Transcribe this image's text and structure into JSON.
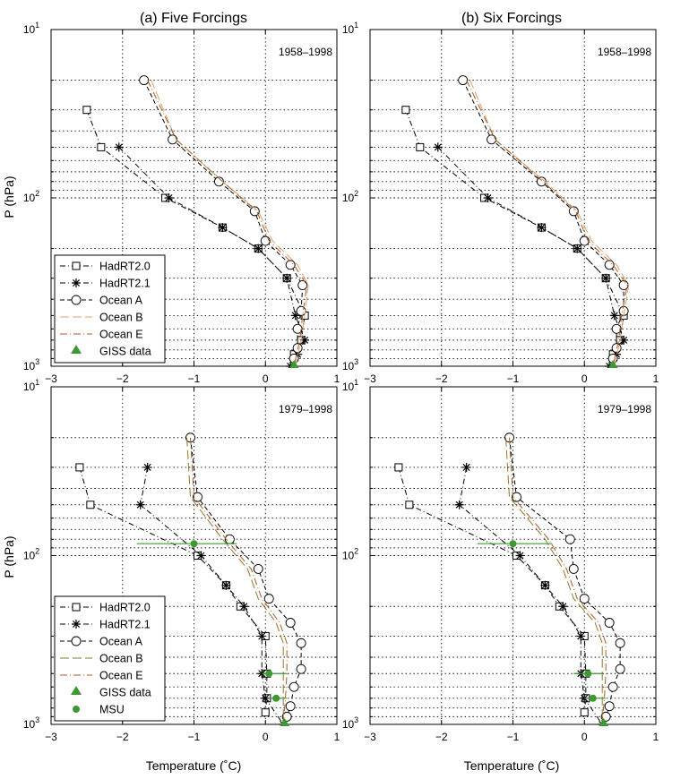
{
  "figure": {
    "ylabel": "P (hPa)",
    "xlabel": "Temperature (˚C)"
  },
  "chart_data": [
    {
      "type": "line",
      "title": "(a) Five Forcings",
      "annotation": "1958–1998",
      "xlim": [
        -3,
        1
      ],
      "ylim": [
        1000,
        10
      ],
      "yscale": "log",
      "xticks": [
        -3,
        -2,
        -1,
        0,
        1
      ],
      "yticks": [
        {
          "v": 10,
          "base": "10",
          "exp": "1"
        },
        {
          "v": 100,
          "base": "10",
          "exp": "2"
        },
        {
          "v": 1000,
          "base": "10",
          "exp": "3"
        }
      ],
      "grid": true,
      "legend": "bottom-left",
      "series": [
        {
          "name": "HadRT2.0",
          "marker": "square",
          "color": "#000000",
          "dash": "6 3 1 3",
          "x": [
            -2.5,
            -2.3,
            -1.4,
            -0.6,
            -0.1,
            0.3,
            0.55,
            0.5,
            0.4
          ],
          "y": [
            30,
            50,
            100,
            150,
            200,
            300,
            500,
            700,
            850
          ]
        },
        {
          "name": "HadRT2.1",
          "marker": "star",
          "color": "#000000",
          "dash": "6 3 1 3",
          "x": [
            -2.05,
            -1.35,
            -0.6,
            -0.1,
            0.3,
            0.42,
            0.55,
            0.45,
            0.35
          ],
          "y": [
            50,
            100,
            150,
            200,
            300,
            500,
            700,
            850,
            1000
          ]
        },
        {
          "name": "Ocean A",
          "marker": "circle",
          "color": "#000000",
          "dash": "5 3",
          "x": [
            -1.7,
            -1.3,
            -0.65,
            -0.15,
            0,
            0.35,
            0.52,
            0.5,
            0.45,
            0.45,
            0.4
          ],
          "y": [
            20,
            45,
            80,
            120,
            180,
            250,
            330,
            470,
            600,
            780,
            900
          ]
        },
        {
          "name": "Ocean B",
          "marker": "none",
          "color": "#d7a46c",
          "dash": "10 4",
          "x": [
            -1.6,
            -1.25,
            -0.6,
            -0.1,
            0.1,
            0.45,
            0.6,
            0.55,
            0.5,
            0.42
          ],
          "y": [
            20,
            45,
            80,
            120,
            180,
            250,
            330,
            500,
            700,
            1000
          ]
        },
        {
          "name": "Ocean E",
          "marker": "none",
          "color": "#a85a2a",
          "dash": "8 3 1 3",
          "x": [
            -1.65,
            -1.25,
            -0.6,
            -0.12,
            0.05,
            0.4,
            0.58,
            0.52,
            0.48,
            0.4
          ],
          "y": [
            20,
            45,
            80,
            120,
            180,
            250,
            330,
            500,
            700,
            1000
          ]
        },
        {
          "name": "GISS data",
          "marker": "triangle",
          "color": "#3d9a33",
          "dash": "",
          "x": [
            0.4
          ],
          "y": [
            1000
          ]
        }
      ]
    },
    {
      "type": "line",
      "title": "(b) Six Forcings",
      "annotation": "1958–1998",
      "xlim": [
        -3,
        1
      ],
      "ylim": [
        1000,
        10
      ],
      "yscale": "log",
      "xticks": [
        -3,
        -2,
        -1,
        0,
        1
      ],
      "yticks": [
        {
          "v": 10,
          "base": "10",
          "exp": "1"
        },
        {
          "v": 100,
          "base": "10",
          "exp": "2"
        },
        {
          "v": 1000,
          "base": "10",
          "exp": "3"
        }
      ],
      "grid": true,
      "series": [
        {
          "name": "HadRT2.0",
          "marker": "square",
          "color": "#000000",
          "dash": "6 3 1 3",
          "x": [
            -2.5,
            -2.3,
            -1.4,
            -0.6,
            -0.1,
            0.3,
            0.55,
            0.5,
            0.4
          ],
          "y": [
            30,
            50,
            100,
            150,
            200,
            300,
            500,
            700,
            850
          ]
        },
        {
          "name": "HadRT2.1",
          "marker": "star",
          "color": "#000000",
          "dash": "6 3 1 3",
          "x": [
            -2.05,
            -1.35,
            -0.6,
            -0.1,
            0.3,
            0.42,
            0.55,
            0.45,
            0.35
          ],
          "y": [
            50,
            100,
            150,
            200,
            300,
            500,
            700,
            850,
            1000
          ]
        },
        {
          "name": "Ocean A",
          "marker": "circle",
          "color": "#000000",
          "dash": "5 3",
          "x": [
            -1.7,
            -1.3,
            -0.6,
            -0.15,
            0,
            0.35,
            0.55,
            0.55,
            0.45,
            0.45,
            0.4
          ],
          "y": [
            20,
            45,
            80,
            120,
            180,
            250,
            330,
            470,
            600,
            780,
            900
          ]
        },
        {
          "name": "Ocean B",
          "marker": "none",
          "color": "#d7a46c",
          "dash": "10 4",
          "x": [
            -1.6,
            -1.25,
            -0.55,
            -0.1,
            0.1,
            0.45,
            0.62,
            0.55,
            0.5,
            0.42
          ],
          "y": [
            20,
            45,
            80,
            120,
            180,
            250,
            330,
            500,
            700,
            1000
          ]
        },
        {
          "name": "Ocean E",
          "marker": "none",
          "color": "#a85a2a",
          "dash": "8 3 1 3",
          "x": [
            -1.65,
            -1.25,
            -0.58,
            -0.12,
            0.05,
            0.4,
            0.6,
            0.52,
            0.48,
            0.4
          ],
          "y": [
            20,
            45,
            80,
            120,
            180,
            250,
            330,
            500,
            700,
            1000
          ]
        },
        {
          "name": "GISS data",
          "marker": "triangle",
          "color": "#3d9a33",
          "dash": "",
          "x": [
            0.4
          ],
          "y": [
            1000
          ]
        }
      ]
    },
    {
      "type": "line",
      "title": "",
      "annotation": "1979–1998",
      "xlim": [
        -3,
        1
      ],
      "ylim": [
        1000,
        10
      ],
      "yscale": "log",
      "xticks": [
        -3,
        -2,
        -1,
        0,
        1
      ],
      "yticks": [
        {
          "v": 10,
          "base": "10",
          "exp": "1"
        },
        {
          "v": 100,
          "base": "10",
          "exp": "2"
        },
        {
          "v": 1000,
          "base": "10",
          "exp": "3"
        }
      ],
      "grid": true,
      "legend": "bottom-left",
      "series": [
        {
          "name": "HadRT2.0",
          "marker": "square",
          "color": "#000000",
          "dash": "6 3 1 3",
          "x": [
            -2.6,
            -2.45,
            -0.95,
            -0.55,
            -0.35,
            0,
            0.02,
            0.02,
            0.0
          ],
          "y": [
            30,
            50,
            100,
            150,
            200,
            300,
            500,
            700,
            850
          ]
        },
        {
          "name": "HadRT2.1",
          "marker": "star",
          "color": "#000000",
          "dash": "6 3 1 3",
          "x": [
            -1.65,
            -1.75,
            -0.9,
            -0.55,
            -0.3,
            -0.05,
            -0.05,
            0.0,
            0.25
          ],
          "y": [
            30,
            50,
            100,
            150,
            200,
            300,
            500,
            700,
            1000
          ]
        },
        {
          "name": "Ocean A",
          "marker": "circle",
          "color": "#000000",
          "dash": "5 3",
          "x": [
            -1.05,
            -0.95,
            -0.5,
            -0.1,
            0.05,
            0.35,
            0.5,
            0.5,
            0.4,
            0.35,
            0.3
          ],
          "y": [
            20,
            45,
            80,
            120,
            180,
            250,
            330,
            470,
            600,
            780,
            900
          ]
        },
        {
          "name": "Ocean B",
          "marker": "none",
          "color": "#8a7a2a",
          "dash": "10 4",
          "x": [
            -1.1,
            -1.05,
            -0.6,
            -0.25,
            -0.1,
            0.15,
            0.25,
            0.25,
            0.25,
            0.25
          ],
          "y": [
            20,
            45,
            80,
            120,
            180,
            250,
            330,
            500,
            700,
            1000
          ]
        },
        {
          "name": "Ocean E",
          "marker": "none",
          "color": "#a85a2a",
          "dash": "8 3 1 3",
          "x": [
            -1.05,
            -1.0,
            -0.55,
            -0.2,
            -0.05,
            0.2,
            0.3,
            0.3,
            0.28,
            0.25
          ],
          "y": [
            20,
            45,
            80,
            120,
            180,
            250,
            330,
            500,
            700,
            1000
          ]
        },
        {
          "name": "GISS data",
          "marker": "triangle",
          "color": "#3d9a33",
          "dash": "",
          "x": [
            0.27
          ],
          "y": [
            1000
          ]
        },
        {
          "name": "MSU",
          "marker": "dot",
          "color": "#3d9a33",
          "dash": "",
          "x": [
            -1.0,
            0.05,
            0.15
          ],
          "y": [
            85,
            500,
            700
          ],
          "xerr_low": [
            -1.8,
            -0.05,
            0.05
          ],
          "xerr_high": [
            -0.4,
            0.3,
            0.3
          ]
        }
      ]
    },
    {
      "type": "line",
      "title": "",
      "annotation": "1979–1998",
      "xlim": [
        -3,
        1
      ],
      "ylim": [
        1000,
        10
      ],
      "yscale": "log",
      "xticks": [
        -3,
        -2,
        -1,
        0,
        1
      ],
      "yticks": [
        {
          "v": 10,
          "base": "10",
          "exp": "1"
        },
        {
          "v": 100,
          "base": "10",
          "exp": "2"
        },
        {
          "v": 1000,
          "base": "10",
          "exp": "3"
        }
      ],
      "grid": true,
      "series": [
        {
          "name": "HadRT2.0",
          "marker": "square",
          "color": "#000000",
          "dash": "6 3 1 3",
          "x": [
            -2.6,
            -2.45,
            -0.95,
            -0.55,
            -0.35,
            0,
            0.02,
            0.02,
            0.0
          ],
          "y": [
            30,
            50,
            100,
            150,
            200,
            300,
            500,
            700,
            850
          ]
        },
        {
          "name": "HadRT2.1",
          "marker": "star",
          "color": "#000000",
          "dash": "6 3 1 3",
          "x": [
            -1.65,
            -1.75,
            -0.9,
            -0.55,
            -0.3,
            -0.05,
            -0.05,
            0.0,
            0.25
          ],
          "y": [
            30,
            50,
            100,
            150,
            200,
            300,
            500,
            700,
            1000
          ]
        },
        {
          "name": "Ocean A",
          "marker": "circle",
          "color": "#000000",
          "dash": "5 3",
          "x": [
            -1.05,
            -0.95,
            -0.2,
            -0.15,
            0.0,
            0.35,
            0.5,
            0.5,
            0.4,
            0.35,
            0.3
          ],
          "y": [
            20,
            45,
            80,
            120,
            180,
            250,
            330,
            470,
            600,
            780,
            900
          ]
        },
        {
          "name": "Ocean B",
          "marker": "none",
          "color": "#8a7a2a",
          "dash": "10 4",
          "x": [
            -1.1,
            -1.05,
            -0.55,
            -0.3,
            -0.15,
            0.15,
            0.25,
            0.25,
            0.25,
            0.25
          ],
          "y": [
            20,
            45,
            80,
            120,
            180,
            250,
            330,
            500,
            700,
            1000
          ]
        },
        {
          "name": "Ocean E",
          "marker": "none",
          "color": "#a85a2a",
          "dash": "8 3 1 3",
          "x": [
            -1.05,
            -1.0,
            -0.5,
            -0.25,
            -0.1,
            0.2,
            0.3,
            0.3,
            0.28,
            0.25
          ],
          "y": [
            20,
            45,
            80,
            120,
            180,
            250,
            330,
            500,
            700,
            1000
          ]
        },
        {
          "name": "GISS data",
          "marker": "triangle",
          "color": "#3d9a33",
          "dash": "",
          "x": [
            0.27
          ],
          "y": [
            1000
          ]
        },
        {
          "name": "MSU",
          "marker": "dot",
          "color": "#3d9a33",
          "dash": "",
          "x": [
            -1.0,
            0.05,
            0.12
          ],
          "y": [
            85,
            500,
            700
          ],
          "xerr_low": [
            -1.5,
            -0.15,
            0.0
          ],
          "xerr_high": [
            -0.45,
            0.25,
            0.3
          ]
        }
      ]
    }
  ]
}
